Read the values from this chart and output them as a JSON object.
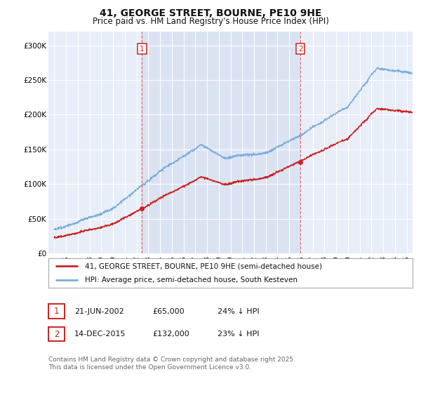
{
  "title": "41, GEORGE STREET, BOURNE, PE10 9HE",
  "subtitle": "Price paid vs. HM Land Registry's House Price Index (HPI)",
  "legend_line1": "41, GEORGE STREET, BOURNE, PE10 9HE (semi-detached house)",
  "legend_line2": "HPI: Average price, semi-detached house, South Kesteven",
  "footnote": "Contains HM Land Registry data © Crown copyright and database right 2025.\nThis data is licensed under the Open Government Licence v3.0.",
  "hpi_color": "#7aaddb",
  "price_color": "#cc2222",
  "dashed_color": "#cc6666",
  "marker1_date_x": 2002.47,
  "marker1_price": 65000,
  "marker2_date_x": 2015.95,
  "marker2_price": 132000,
  "ylim": [
    0,
    320000
  ],
  "xlim_start": 1994.5,
  "xlim_end": 2025.5,
  "background_color": "#ffffff",
  "plot_bg_color": "#e8eef8",
  "shade_color": "#d0daf0"
}
